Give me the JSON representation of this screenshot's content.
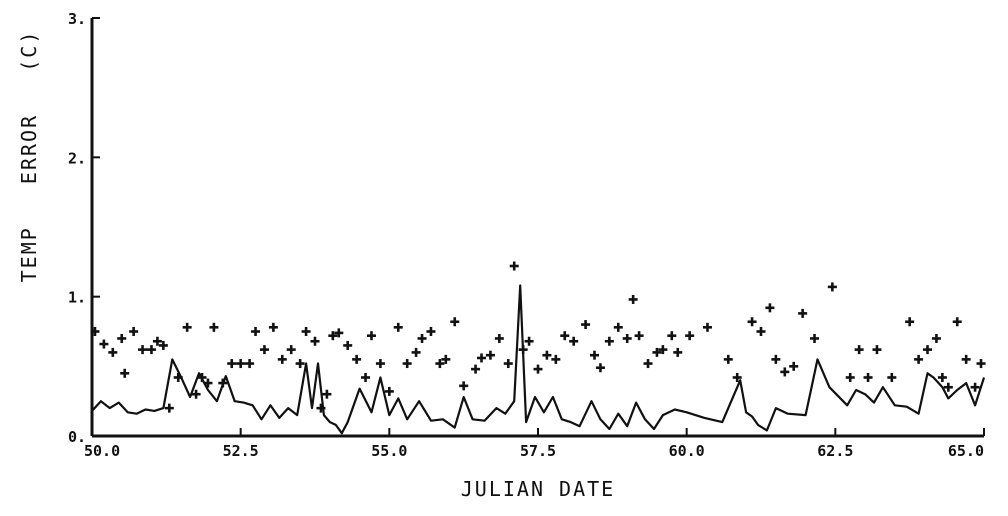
{
  "chart_data": {
    "type": "scatter",
    "xlabel": "JULIAN DATE",
    "ylabel": "TEMP   ERROR   (C)",
    "xlim": [
      50.0,
      65.0
    ],
    "ylim": [
      0.0,
      3.0
    ],
    "x_tick_labels": [
      "50.0",
      "52.5",
      "55.0",
      "57.5",
      "60.0",
      "62.5",
      "65.0"
    ],
    "y_tick_labels": [
      "0.",
      "1.",
      "2.",
      "3."
    ],
    "x_ticks": [
      50.0,
      52.5,
      55.0,
      57.5,
      60.0,
      62.5,
      65.0
    ],
    "y_ticks": [
      0,
      1,
      2,
      3
    ],
    "grid": false,
    "series": [
      {
        "style": "line",
        "x": [
          50.0,
          50.15,
          50.3,
          50.45,
          50.6,
          50.75,
          50.9,
          51.05,
          51.2,
          51.35,
          51.5,
          51.65,
          51.8,
          51.95,
          52.1,
          52.25,
          52.4,
          52.55,
          52.7,
          52.85,
          53.0,
          53.15,
          53.3,
          53.45,
          53.6,
          53.7,
          53.8,
          53.9,
          54.0,
          54.1,
          54.2,
          54.3,
          54.5,
          54.7,
          54.85,
          55.0,
          55.15,
          55.3,
          55.5,
          55.7,
          55.9,
          56.1,
          56.25,
          56.4,
          56.6,
          56.8,
          56.95,
          57.1,
          57.2,
          57.3,
          57.45,
          57.6,
          57.75,
          57.9,
          58.05,
          58.2,
          58.4,
          58.55,
          58.7,
          58.85,
          59.0,
          59.15,
          59.3,
          59.45,
          59.6,
          59.8,
          60.0,
          60.3,
          60.6,
          60.9,
          61.0,
          61.1,
          61.2,
          61.35,
          61.5,
          61.7,
          62.0,
          62.2,
          62.4,
          62.7,
          62.85,
          63.0,
          63.15,
          63.3,
          63.5,
          63.7,
          63.9,
          64.05,
          64.15,
          64.3,
          64.4,
          64.55,
          64.7,
          64.85,
          65.0
        ],
        "y": [
          0.18,
          0.25,
          0.2,
          0.24,
          0.17,
          0.16,
          0.19,
          0.18,
          0.2,
          0.55,
          0.42,
          0.28,
          0.45,
          0.33,
          0.25,
          0.43,
          0.25,
          0.24,
          0.22,
          0.12,
          0.22,
          0.13,
          0.2,
          0.15,
          0.52,
          0.2,
          0.52,
          0.15,
          0.1,
          0.08,
          0.02,
          0.1,
          0.34,
          0.17,
          0.42,
          0.15,
          0.27,
          0.12,
          0.25,
          0.11,
          0.12,
          0.06,
          0.28,
          0.12,
          0.11,
          0.2,
          0.16,
          0.25,
          1.08,
          0.1,
          0.28,
          0.17,
          0.28,
          0.12,
          0.1,
          0.07,
          0.25,
          0.12,
          0.05,
          0.16,
          0.07,
          0.24,
          0.12,
          0.05,
          0.15,
          0.19,
          0.17,
          0.13,
          0.1,
          0.4,
          0.17,
          0.14,
          0.08,
          0.04,
          0.2,
          0.16,
          0.15,
          0.55,
          0.35,
          0.22,
          0.33,
          0.3,
          0.24,
          0.35,
          0.22,
          0.21,
          0.16,
          0.45,
          0.42,
          0.35,
          0.27,
          0.33,
          0.38,
          0.22,
          0.42
        ]
      },
      {
        "style": "plus",
        "x": [
          50.05,
          50.2,
          50.35,
          50.5,
          50.55,
          50.7,
          50.85,
          51.0,
          51.1,
          51.2,
          51.3,
          51.45,
          51.6,
          51.75,
          51.85,
          51.95,
          52.05,
          52.2,
          52.35,
          52.5,
          52.65,
          52.75,
          52.9,
          53.05,
          53.2,
          53.35,
          53.5,
          53.6,
          53.75,
          53.85,
          53.95,
          54.05,
          54.15,
          54.3,
          54.45,
          54.6,
          54.7,
          54.85,
          55.0,
          55.15,
          55.3,
          55.45,
          55.55,
          55.7,
          55.85,
          55.95,
          56.1,
          56.25,
          56.45,
          56.55,
          56.7,
          56.85,
          57.0,
          57.1,
          57.25,
          57.35,
          57.5,
          57.65,
          57.8,
          57.95,
          58.1,
          58.3,
          58.45,
          58.55,
          58.7,
          58.85,
          59.0,
          59.1,
          59.2,
          59.35,
          59.5,
          59.6,
          59.75,
          59.85,
          60.05,
          60.35,
          60.7,
          60.85,
          61.1,
          61.25,
          61.4,
          61.5,
          61.65,
          61.8,
          61.95,
          62.15,
          62.45,
          62.75,
          62.9,
          63.05,
          63.2,
          63.45,
          63.75,
          63.9,
          64.05,
          64.2,
          64.3,
          64.4,
          64.55,
          64.7,
          64.85,
          64.95
        ],
        "y": [
          0.75,
          0.66,
          0.6,
          0.7,
          0.45,
          0.75,
          0.62,
          0.62,
          0.68,
          0.65,
          0.2,
          0.42,
          0.78,
          0.3,
          0.42,
          0.38,
          0.78,
          0.38,
          0.52,
          0.52,
          0.52,
          0.75,
          0.62,
          0.78,
          0.55,
          0.62,
          0.52,
          0.75,
          0.68,
          0.2,
          0.3,
          0.72,
          0.74,
          0.65,
          0.55,
          0.42,
          0.72,
          0.52,
          0.32,
          0.78,
          0.52,
          0.6,
          0.7,
          0.75,
          0.52,
          0.55,
          0.82,
          0.36,
          0.48,
          0.56,
          0.58,
          0.7,
          0.52,
          1.22,
          0.62,
          0.68,
          0.48,
          0.58,
          0.55,
          0.72,
          0.68,
          0.8,
          0.58,
          0.49,
          0.68,
          0.78,
          0.7,
          0.98,
          0.72,
          0.52,
          0.6,
          0.62,
          0.72,
          0.6,
          0.72,
          0.78,
          0.55,
          0.42,
          0.82,
          0.75,
          0.92,
          0.55,
          0.46,
          0.5,
          0.88,
          0.7,
          1.07,
          0.42,
          0.62,
          0.42,
          0.62,
          0.42,
          0.82,
          0.55,
          0.62,
          0.7,
          0.42,
          0.35,
          0.82,
          0.55,
          0.35,
          0.52
        ]
      }
    ]
  }
}
